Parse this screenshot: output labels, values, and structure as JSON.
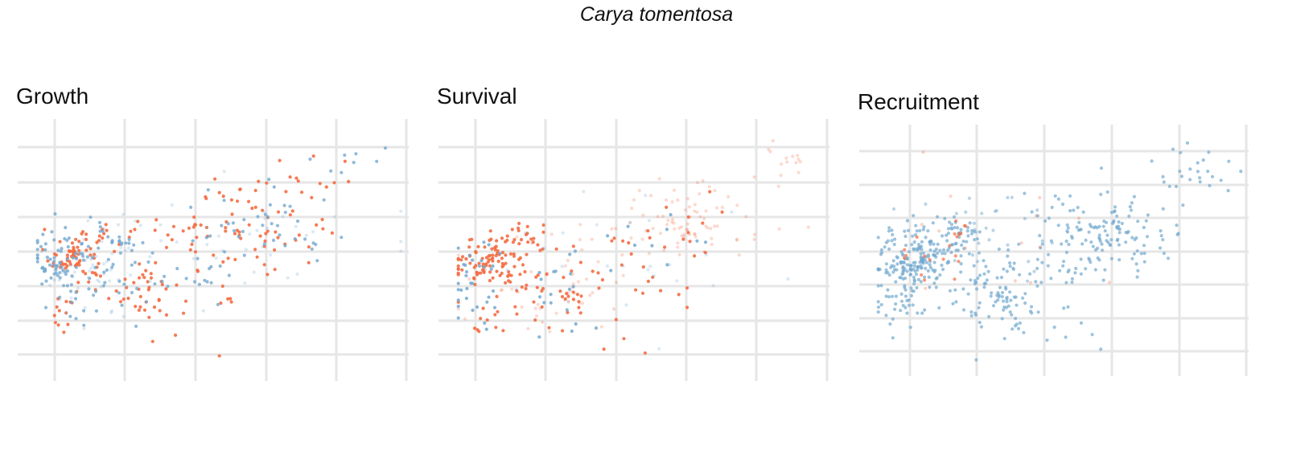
{
  "figure": {
    "title": "Carya tomentosa"
  },
  "colors": {
    "orange": "#f46d43",
    "blue": "#74a9cf",
    "grid": "#e6e6e6",
    "background": "#ffffff"
  },
  "chart_data": [
    {
      "type": "scatter",
      "title": "Growth",
      "xlim": [
        0,
        5.5
      ],
      "ylim": [
        0,
        7
      ],
      "grid": true,
      "x_ticks_shown": false,
      "y_ticks_shown": false,
      "series": [
        {
          "color": "#f46d43",
          "clusters": [
            {
              "x": [
                0.6,
                0.2
              ],
              "y": [
                3.3,
                0.35
              ],
              "n": 65,
              "alpha": 0.9
            },
            {
              "x": [
                1.0,
                0.25
              ],
              "y": [
                4.0,
                0.25
              ],
              "n": 14,
              "alpha": 0.9
            },
            {
              "x": [
                1.6,
                0.25
              ],
              "y": [
                2.4,
                0.45
              ],
              "n": 35,
              "alpha": 0.9
            },
            {
              "x": [
                2.5,
                0.55
              ],
              "y": [
                3.2,
                0.9
              ],
              "n": 22,
              "alpha": 0.9
            },
            {
              "x": [
                3.4,
                0.5
              ],
              "y": [
                4.2,
                0.55
              ],
              "n": 48,
              "alpha": 0.9
            },
            {
              "x": [
                2.2,
                0.35
              ],
              "y": [
                4.1,
                0.15
              ],
              "n": 10,
              "alpha": 0.9
            },
            {
              "x": [
                4.3,
                0.35
              ],
              "y": [
                5.4,
                0.45
              ],
              "n": 12,
              "alpha": 0.9
            },
            {
              "x": [
                0.4,
                0.2
              ],
              "y": [
                1.7,
                0.25
              ],
              "n": 12,
              "alpha": 0.9
            },
            {
              "x": [
                2.3,
                0.5
              ],
              "y": [
                1.4,
                0.4
              ],
              "n": 6,
              "alpha": 0.9
            },
            {
              "x": [
                2.7,
                0.3
              ],
              "y": [
                5.6,
                0.35
              ],
              "n": 4,
              "alpha": 0.9
            }
          ]
        },
        {
          "color": "#74a9cf",
          "clusters": [
            {
              "x": [
                0.45,
                0.3
              ],
              "y": [
                3.2,
                0.45
              ],
              "n": 75,
              "alpha": 0.8
            },
            {
              "x": [
                1.2,
                0.2
              ],
              "y": [
                3.9,
                0.2
              ],
              "n": 20,
              "alpha": 0.8
            },
            {
              "x": [
                0.6,
                0.3
              ],
              "y": [
                2.2,
                0.5
              ],
              "n": 18,
              "alpha": 0.8
            },
            {
              "x": [
                1.6,
                0.35
              ],
              "y": [
                2.6,
                0.4
              ],
              "n": 20,
              "alpha": 0.8
            },
            {
              "x": [
                3.3,
                0.6
              ],
              "y": [
                4.0,
                0.6
              ],
              "n": 40,
              "alpha": 0.8
            },
            {
              "x": [
                2.5,
                0.35
              ],
              "y": [
                2.7,
                0.4
              ],
              "n": 12,
              "alpha": 0.8
            },
            {
              "x": [
                4.8,
                0.35
              ],
              "y": [
                6.0,
                0.25
              ],
              "n": 8,
              "alpha": 0.8
            },
            {
              "x": [
                2.6,
                1.2
              ],
              "y": [
                3.6,
                0.9
              ],
              "n": 45,
              "alpha": 0.25
            },
            {
              "x": [
                0.8,
                0.4
              ],
              "y": [
                3.0,
                0.9
              ],
              "n": 40,
              "alpha": 0.25
            }
          ]
        }
      ]
    },
    {
      "type": "scatter",
      "title": "Survival",
      "xlim": [
        0,
        5.5
      ],
      "ylim": [
        0,
        7
      ],
      "grid": true,
      "x_ticks_shown": false,
      "y_ticks_shown": false,
      "series": [
        {
          "color": "#f46d43",
          "clusters": [
            {
              "x": [
                0.5,
                0.28
              ],
              "y": [
                3.2,
                0.4
              ],
              "n": 100,
              "alpha": 0.9
            },
            {
              "x": [
                1.0,
                0.25
              ],
              "y": [
                3.9,
                0.25
              ],
              "n": 18,
              "alpha": 0.9
            },
            {
              "x": [
                1.5,
                0.4
              ],
              "y": [
                2.2,
                0.45
              ],
              "n": 35,
              "alpha": 0.9
            },
            {
              "x": [
                2.6,
                0.5
              ],
              "y": [
                3.0,
                0.7
              ],
              "n": 20,
              "alpha": 0.9
            },
            {
              "x": [
                3.3,
                0.4
              ],
              "y": [
                4.1,
                0.4
              ],
              "n": 12,
              "alpha": 0.9
            },
            {
              "x": [
                0.4,
                0.2
              ],
              "y": [
                1.6,
                0.3
              ],
              "n": 10,
              "alpha": 0.9
            },
            {
              "x": [
                2.3,
                0.35
              ],
              "y": [
                1.0,
                0.3
              ],
              "n": 5,
              "alpha": 0.9
            },
            {
              "x": [
                3.4,
                0.7
              ],
              "y": [
                4.3,
                0.6
              ],
              "n": 80,
              "alpha": 0.25
            },
            {
              "x": [
                1.4,
                0.6
              ],
              "y": [
                2.6,
                0.8
              ],
              "n": 50,
              "alpha": 0.25
            },
            {
              "x": [
                4.8,
                0.3
              ],
              "y": [
                5.9,
                0.3
              ],
              "n": 15,
              "alpha": 0.25
            }
          ]
        },
        {
          "color": "#74a9cf",
          "clusters": [
            {
              "x": [
                0.3,
                0.25
              ],
              "y": [
                2.9,
                0.6
              ],
              "n": 25,
              "alpha": 0.85
            },
            {
              "x": [
                1.5,
                0.3
              ],
              "y": [
                2.2,
                0.5
              ],
              "n": 18,
              "alpha": 0.85
            },
            {
              "x": [
                3.1,
                0.5
              ],
              "y": [
                3.9,
                0.4
              ],
              "n": 10,
              "alpha": 0.85
            },
            {
              "x": [
                0.3,
                0.2
              ],
              "y": [
                1.6,
                0.3
              ],
              "n": 8,
              "alpha": 0.85
            },
            {
              "x": [
                2.6,
                1.0
              ],
              "y": [
                3.5,
                0.9
              ],
              "n": 25,
              "alpha": 0.25
            }
          ]
        }
      ]
    },
    {
      "type": "scatter",
      "title": "Recruitment",
      "xlim": [
        0,
        5.5
      ],
      "ylim": [
        0,
        7
      ],
      "grid": true,
      "x_ticks_shown": false,
      "y_ticks_shown": false,
      "series": [
        {
          "color": "#74a9cf",
          "clusters": [
            {
              "x": [
                0.6,
                0.3
              ],
              "y": [
                3.2,
                0.5
              ],
              "n": 190,
              "alpha": 0.7
            },
            {
              "x": [
                1.2,
                0.2
              ],
              "y": [
                3.9,
                0.3
              ],
              "n": 40,
              "alpha": 0.7
            },
            {
              "x": [
                0.4,
                0.25
              ],
              "y": [
                2.0,
                0.5
              ],
              "n": 40,
              "alpha": 0.7
            },
            {
              "x": [
                1.8,
                0.3
              ],
              "y": [
                2.1,
                0.6
              ],
              "n": 80,
              "alpha": 0.7
            },
            {
              "x": [
                3.4,
                0.55
              ],
              "y": [
                4.0,
                0.6
              ],
              "n": 130,
              "alpha": 0.7
            },
            {
              "x": [
                2.6,
                0.4
              ],
              "y": [
                3.0,
                0.4
              ],
              "n": 25,
              "alpha": 0.7
            },
            {
              "x": [
                4.7,
                0.45
              ],
              "y": [
                5.8,
                0.4
              ],
              "n": 25,
              "alpha": 0.7
            },
            {
              "x": [
                2.7,
                0.5
              ],
              "y": [
                1.4,
                0.6
              ],
              "n": 18,
              "alpha": 0.7
            },
            {
              "x": [
                1.6,
                0.6
              ],
              "y": [
                4.2,
                0.8
              ],
              "n": 30,
              "alpha": 0.5
            }
          ]
        },
        {
          "color": "#f46d43",
          "clusters": [
            {
              "x": [
                0.7,
                0.3
              ],
              "y": [
                3.3,
                0.3
              ],
              "n": 12,
              "alpha": 0.7
            },
            {
              "x": [
                1.2,
                0.15
              ],
              "y": [
                4.0,
                0.2
              ],
              "n": 8,
              "alpha": 0.7
            },
            {
              "x": [
                1.5,
                0.8
              ],
              "y": [
                3.6,
                1.3
              ],
              "n": 14,
              "alpha": 0.3
            }
          ]
        }
      ]
    }
  ]
}
